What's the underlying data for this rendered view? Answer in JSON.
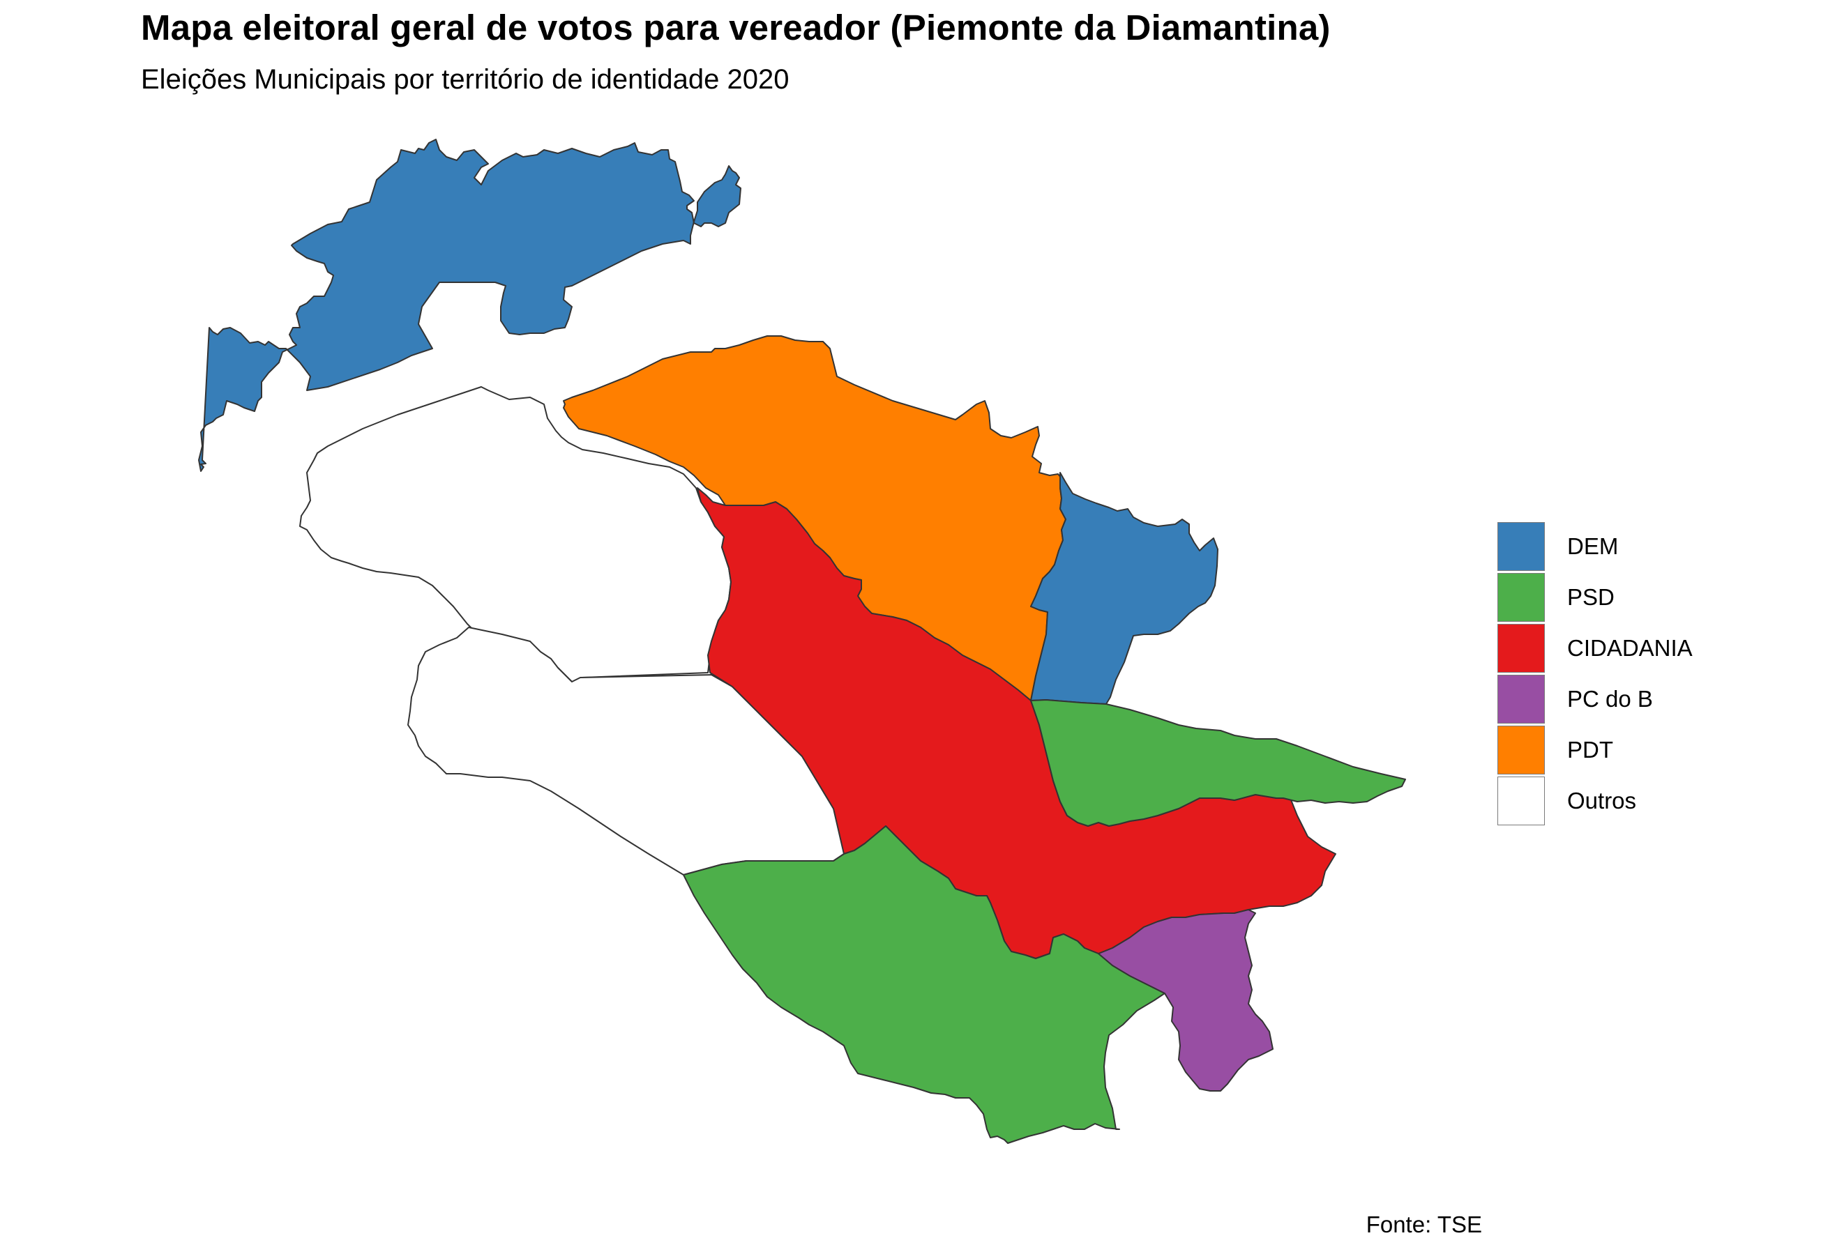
{
  "title": "Mapa eleitoral geral de votos para vereador (Piemonte da Diamantina)",
  "subtitle": "Eleições Municipais por território de identidade 2020",
  "caption": "Fonte: TSE",
  "legend": [
    {
      "label": "DEM",
      "color": "#377eb8"
    },
    {
      "label": "PSD",
      "color": "#4daf4a"
    },
    {
      "label": "CIDADANIA",
      "color": "#e41a1c"
    },
    {
      "label": "PC do B",
      "color": "#984ea3"
    },
    {
      "label": "PDT",
      "color": "#ff7f00"
    },
    {
      "label": "Outros",
      "color": "#ffffff"
    }
  ],
  "regions": [
    {
      "party": "DEM",
      "color": "#377eb8"
    },
    {
      "party": "Outros",
      "color": "#ffffff"
    },
    {
      "party": "Outros",
      "color": "#ffffff"
    },
    {
      "party": "PDT",
      "color": "#ff7f00"
    },
    {
      "party": "DEM",
      "color": "#377eb8"
    },
    {
      "party": "CIDADANIA",
      "color": "#e41a1c"
    },
    {
      "party": "PSD",
      "color": "#4daf4a"
    },
    {
      "party": "PSD",
      "color": "#4daf4a"
    },
    {
      "party": "PC do B",
      "color": "#984ea3"
    }
  ]
}
